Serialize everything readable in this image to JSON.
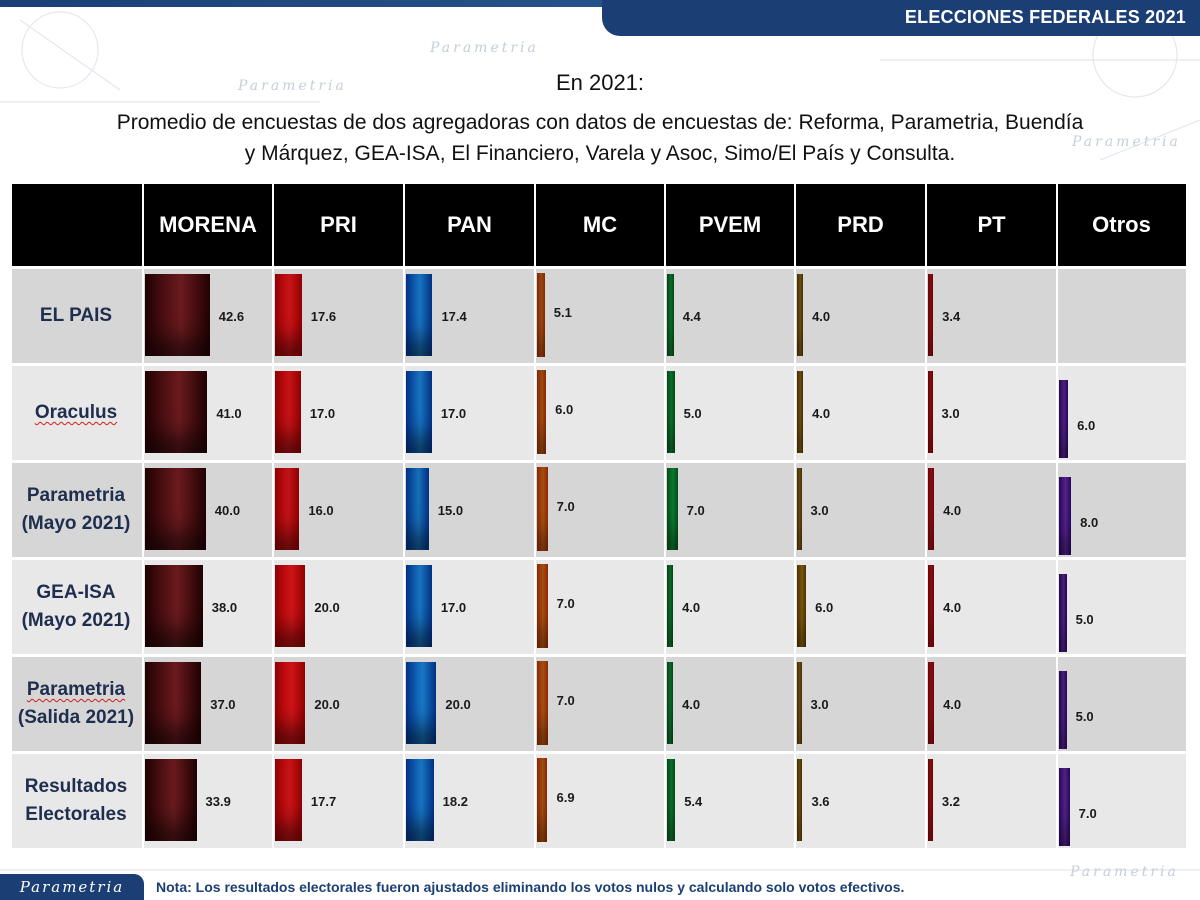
{
  "header": {
    "banner": "ELECCIONES FEDERALES 2021"
  },
  "title": "En 2021:",
  "subtitle_lines": [
    "Promedio de encuestas de dos agregadoras con datos de encuestas de: Reforma, Parametria, Buendía",
    "y Márquez, GEA-ISA, El Financiero, Varela y Asoc, Simo/El País y  Consulta."
  ],
  "watermark": "Parametria",
  "footer": {
    "logo": "Parametria",
    "note": "Nota: Los resultados electorales fueron ajustados eliminando los votos nulos y calculando solo votos efectivos."
  },
  "colors": {
    "MORENA": "#6a1b1f",
    "PRI": "#e0161b",
    "PAN": "#1b83d6",
    "MC": "#ef7a1c",
    "PVEM": "#17b150",
    "PRD": "#b78a16",
    "PT": "#e31b23",
    "Otros": "#7b34c1"
  },
  "chart_data": {
    "type": "table",
    "columns": [
      "MORENA",
      "PRI",
      "PAN",
      "MC",
      "PVEM",
      "PRD",
      "PT",
      "Otros"
    ],
    "rows": [
      {
        "label": [
          "EL PAIS"
        ],
        "values": [
          42.6,
          17.6,
          17.4,
          5.1,
          4.4,
          4.0,
          3.4,
          null
        ],
        "display": [
          "42.6",
          "17.6",
          "17.4",
          "5.1",
          "4.4",
          "4.0",
          "3.4",
          ""
        ]
      },
      {
        "label": [
          "Oraculus"
        ],
        "values": [
          41.0,
          17.0,
          17.0,
          6.0,
          5.0,
          4.0,
          3.0,
          6.0
        ],
        "display": [
          "41.0",
          "17.0",
          "17.0",
          "6.0",
          "5.0",
          "4.0",
          "3.0",
          "6.0"
        ]
      },
      {
        "label": [
          "Parametria",
          "(Mayo 2021)"
        ],
        "values": [
          40.0,
          16.0,
          15.0,
          7.0,
          7.0,
          3.0,
          4.0,
          8.0
        ],
        "display": [
          "40.0",
          "16.0",
          "15.0",
          "7.0",
          "7.0",
          "3.0",
          "4.0",
          "8.0"
        ]
      },
      {
        "label": [
          "GEA-ISA",
          "(Mayo 2021)"
        ],
        "values": [
          38.0,
          20.0,
          17.0,
          7.0,
          4.0,
          6.0,
          4.0,
          5.0
        ],
        "display": [
          "38.0",
          "20.0",
          "17.0",
          "7.0",
          "4.0",
          "6.0",
          "4.0",
          "5.0"
        ]
      },
      {
        "label": [
          "Parametria",
          "(Salida 2021)"
        ],
        "values": [
          37.0,
          20.0,
          20.0,
          7.0,
          4.0,
          3.0,
          4.0,
          5.0
        ],
        "display": [
          "37.0",
          "20.0",
          "20.0",
          "7.0",
          "4.0",
          "3.0",
          "4.0",
          "5.0"
        ]
      },
      {
        "label": [
          "Resultados",
          "Electorales"
        ],
        "values": [
          33.9,
          17.7,
          18.2,
          6.9,
          5.4,
          3.6,
          3.2,
          7.0
        ],
        "display": [
          "33.9",
          "17.7",
          "18.2",
          "6.9",
          "5.4",
          "3.6",
          "3.2",
          "7.0"
        ]
      }
    ]
  }
}
